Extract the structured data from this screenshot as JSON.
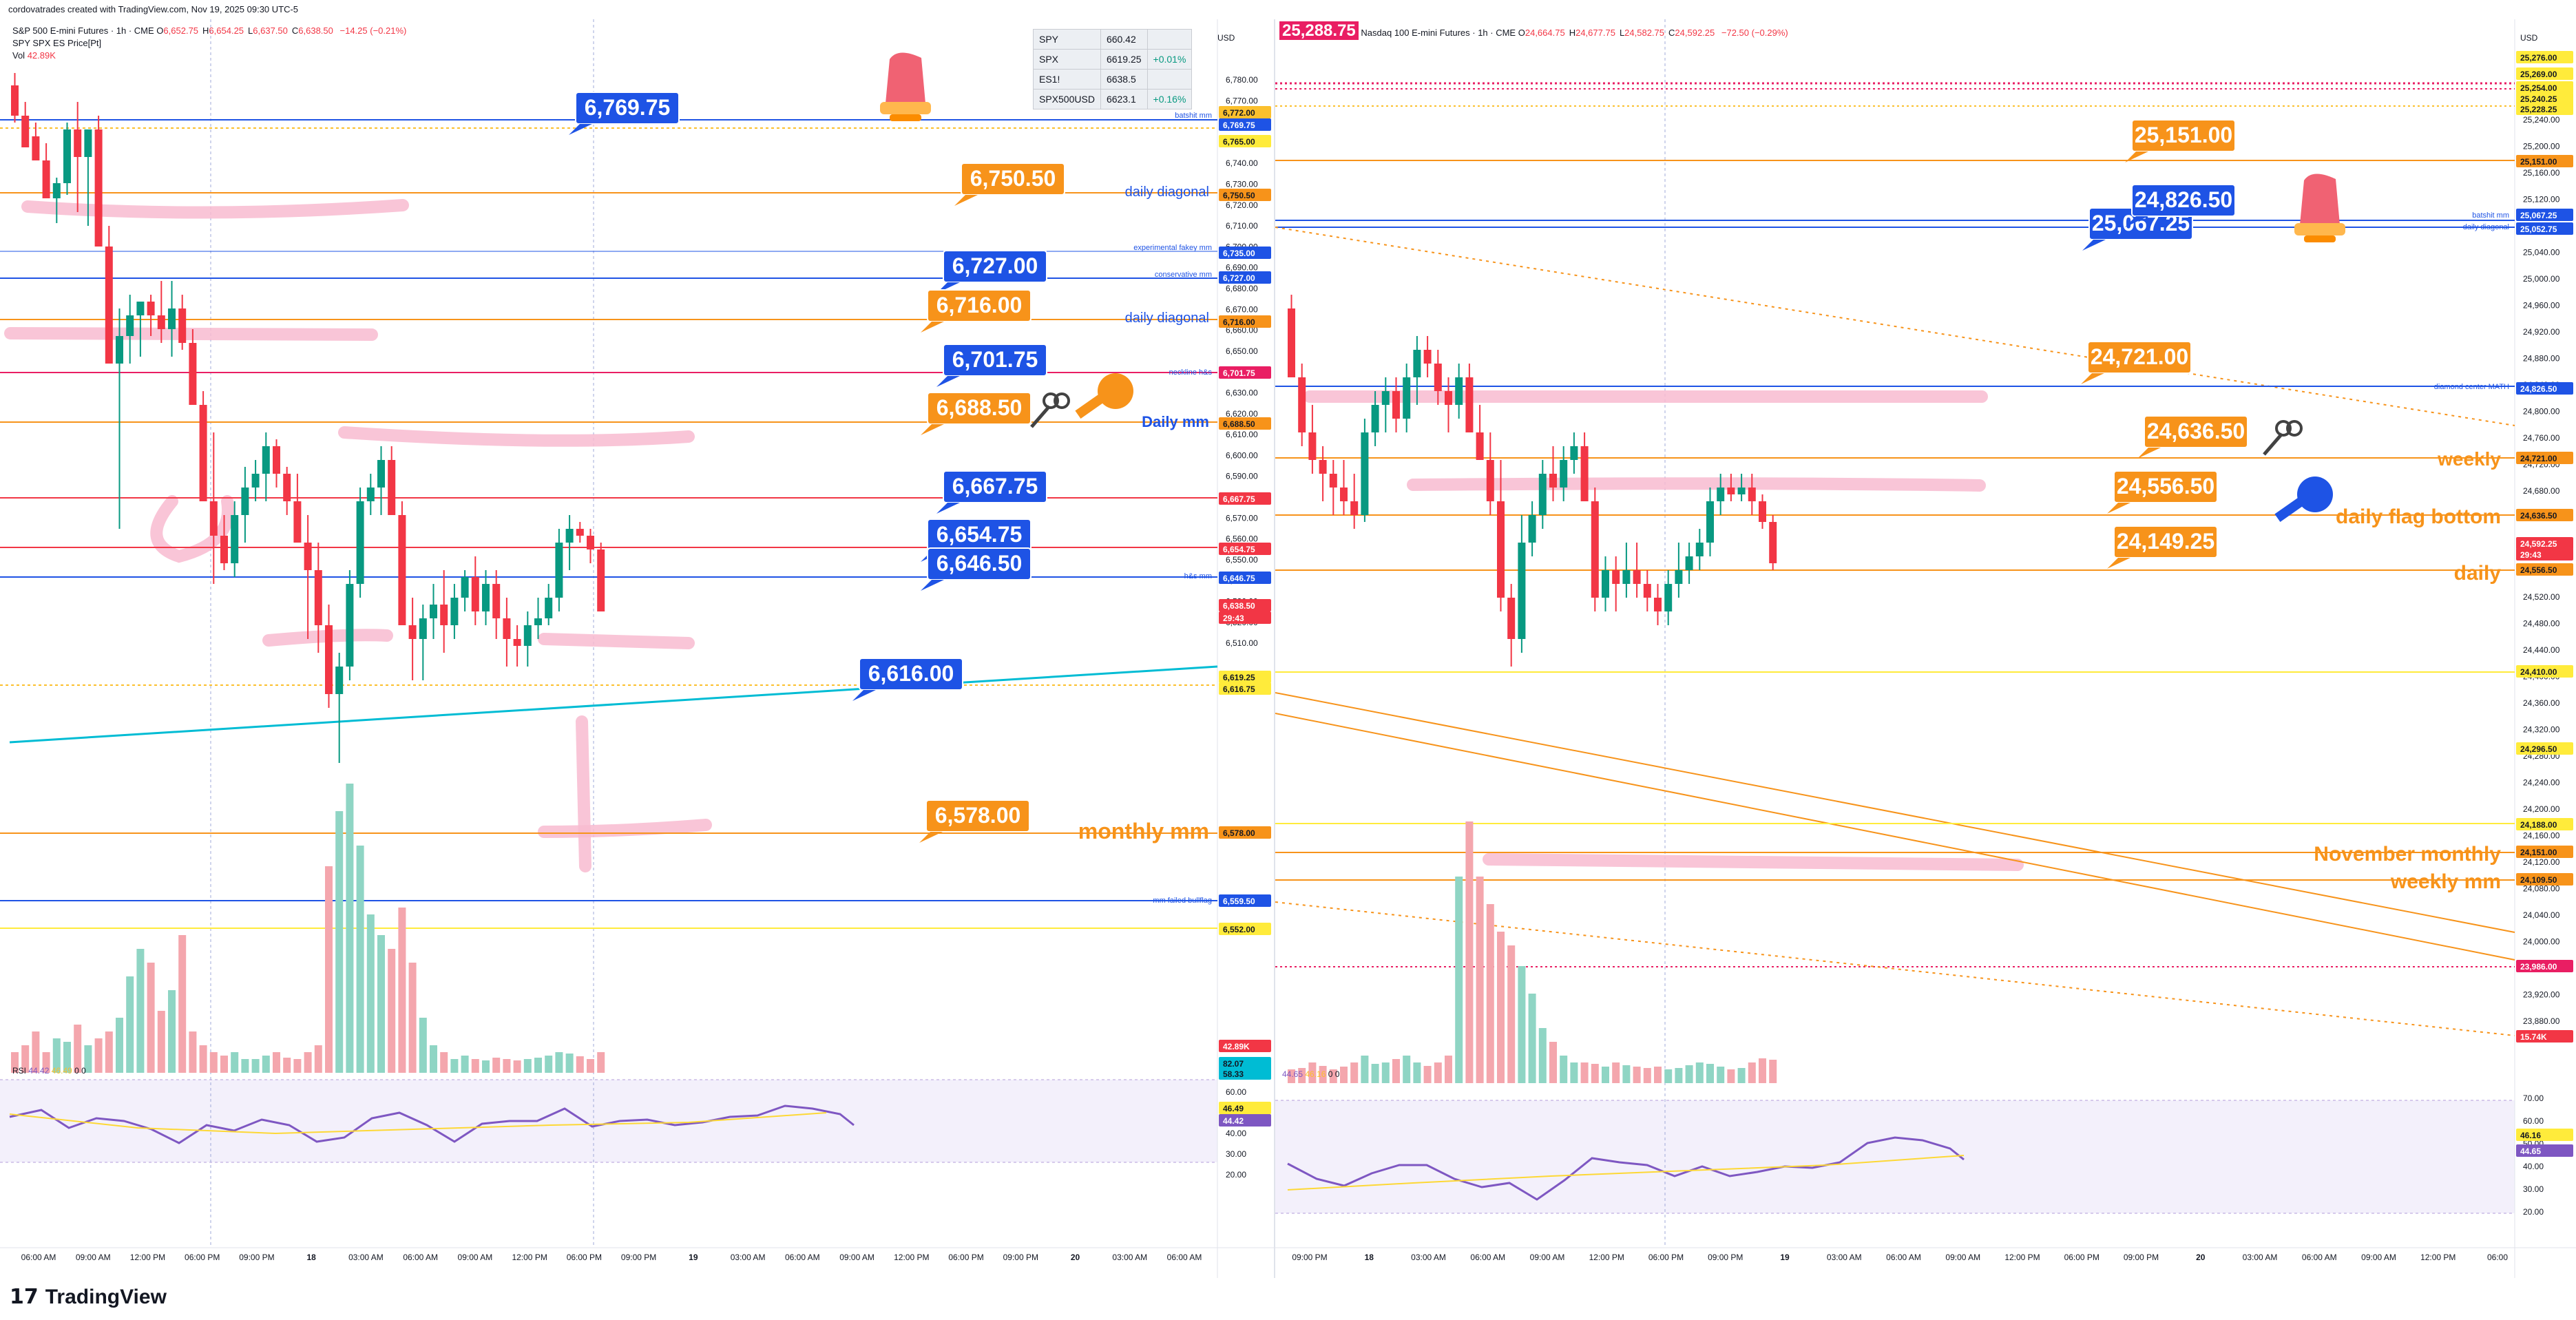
{
  "header": {
    "text": "cordovatrades created with TradingView.com, Nov 19, 2025 09:30 UTC-5"
  },
  "left": {
    "symbol": "S&P 500 E-mini Futures · 1h · CME",
    "ohlc": [
      {
        "k": "O",
        "v": "6,652.75"
      },
      {
        "k": "H",
        "v": "6,654.25"
      },
      {
        "k": "L",
        "v": "6,637.50"
      },
      {
        "k": "C",
        "v": "6,638.50"
      }
    ],
    "change": "−14.25 (−0.21%)",
    "indicator": "SPY SPX ES Price[Pt]",
    "vol_label": "Vol",
    "vol_value": "42.89K",
    "rsi_label": "RSI",
    "rsi_value": "44.42",
    "rsi_ma_value": "46.49",
    "rsi_extra": "0 0",
    "currency": "USD",
    "watchlist": [
      {
        "sym": "SPY",
        "price": "660.42",
        "chg": ""
      },
      {
        "sym": "SPX",
        "price": "6619.25",
        "chg": "+0.01%"
      },
      {
        "sym": "ES1!",
        "price": "6638.5",
        "chg": ""
      },
      {
        "sym": "SPX500USD",
        "price": "6623.1",
        "chg": "+0.16%"
      }
    ],
    "price_ticks": [
      "6,780.00",
      "6,770.00",
      "6,760.00",
      "6,750.00",
      "6,740.00",
      "6,730.00",
      "6,720.00",
      "6,710.00",
      "6,700.00",
      "6,690.00",
      "6,680.00",
      "6,670.00",
      "6,660.00",
      "6,650.00",
      "6,640.00",
      "6,630.00",
      "6,620.00",
      "6,610.00",
      "6,600.00",
      "6,590.00",
      "6,580.00",
      "6,570.00",
      "6,560.00",
      "6,550.00",
      "6,540.00",
      "6,530.00",
      "6,520.00",
      "6,510.00"
    ],
    "rsi_ticks": [
      "70.00",
      "60.00",
      "50.00",
      "40.00",
      "30.00",
      "20.00"
    ],
    "time_ticks": [
      "06:00 AM",
      "09:00 AM",
      "12:00 PM",
      "06:00 PM",
      "09:00 PM",
      "18",
      "03:00 AM",
      "06:00 AM",
      "09:00 AM",
      "12:00 PM",
      "06:00 PM",
      "09:00 PM",
      "19",
      "03:00 AM",
      "06:00 AM",
      "09:00 AM",
      "12:00 PM",
      "06:00 PM",
      "09:00 PM",
      "20",
      "03:00 AM",
      "06:00 AM"
    ],
    "axis_badges": [
      {
        "text": "6,772.00",
        "color": "#fbc02d",
        "fg": "#131722"
      },
      {
        "text": "6,769.75",
        "color": "#1e53e5",
        "fg": "#ffffff"
      },
      {
        "text": "6,765.00",
        "color": "#ffeb3b",
        "fg": "#131722"
      },
      {
        "text": "6,750.50",
        "color": "#f7931a",
        "fg": "#131722"
      },
      {
        "text": "6,735.00",
        "color": "#1e53e5",
        "fg": "#ffffff"
      },
      {
        "text": "6,727.00",
        "color": "#1e53e5",
        "fg": "#ffffff"
      },
      {
        "text": "6,716.00",
        "color": "#f7931a",
        "fg": "#131722"
      },
      {
        "text": "6,701.75",
        "color": "#e91e63",
        "fg": "#ffffff"
      },
      {
        "text": "6,688.50",
        "color": "#f7931a",
        "fg": "#131722"
      },
      {
        "text": "6,667.75",
        "color": "#f23645",
        "fg": "#ffffff"
      },
      {
        "text": "6,654.75",
        "color": "#f23645",
        "fg": "#ffffff"
      },
      {
        "text": "6,646.75",
        "color": "#1e53e5",
        "fg": "#ffffff"
      },
      {
        "text": "6,638.50",
        "color": "#f23645",
        "fg": "#ffffff"
      },
      {
        "text": "29:43",
        "color": "#f23645",
        "fg": "#ffffff"
      },
      {
        "text": "6,619.25",
        "color": "#ffeb3b",
        "fg": "#131722"
      },
      {
        "text": "6,616.75",
        "color": "#ffeb3b",
        "fg": "#131722"
      },
      {
        "text": "6,578.00",
        "color": "#f7931a",
        "fg": "#131722"
      },
      {
        "text": "6,559.50",
        "color": "#1e53e5",
        "fg": "#ffffff"
      },
      {
        "text": "6,552.00",
        "color": "#ffeb3b",
        "fg": "#131722"
      },
      {
        "text": "42.89K",
        "color": "#f23645",
        "fg": "#ffffff"
      },
      {
        "text": "82.07",
        "color": "#00bcd4",
        "fg": "#131722"
      },
      {
        "text": "58.33",
        "color": "#00bcd4",
        "fg": "#131722"
      },
      {
        "text": "46.49",
        "color": "#ffeb3b",
        "fg": "#131722"
      },
      {
        "text": "44.42",
        "color": "#7e57c2",
        "fg": "#ffffff"
      }
    ],
    "price_callouts": [
      {
        "text": "6,769.75",
        "color": "#1e53e5"
      },
      {
        "text": "6,750.50",
        "color": "#f7931a"
      },
      {
        "text": "6,727.00",
        "color": "#1e53e5"
      },
      {
        "text": "6,716.00",
        "color": "#f7931a"
      },
      {
        "text": "6,701.75",
        "color": "#1e53e5"
      },
      {
        "text": "6,688.50",
        "color": "#f7931a"
      },
      {
        "text": "6,667.75",
        "color": "#1e53e5"
      },
      {
        "text": "6,654.75",
        "color": "#1e53e5"
      },
      {
        "text": "6,646.50",
        "color": "#1e53e5"
      },
      {
        "text": "6,616.00",
        "color": "#1e53e5"
      },
      {
        "text": "6,578.00",
        "color": "#f7931a"
      }
    ],
    "line_labels": [
      {
        "text": "batshit mm",
        "color": "#1e53e5"
      },
      {
        "text": "daily diagonal",
        "color": "#1e53e5"
      },
      {
        "text": "experimental fakey mm",
        "color": "#1e53e5"
      },
      {
        "text": "conservative mm",
        "color": "#1e53e5"
      },
      {
        "text": "daily diagonal",
        "color": "#1e53e5"
      },
      {
        "text": "neckline h&s",
        "color": "#1e53e5"
      },
      {
        "text": "Daily mm",
        "color": "#1e53e5"
      },
      {
        "text": "h&s mm",
        "color": "#1e53e5"
      },
      {
        "text": "monthly mm",
        "color": "#f7931a"
      },
      {
        "text": "mm failed bullflag",
        "color": "#1e53e5"
      }
    ]
  },
  "right": {
    "symbol": "Nasdaq 100 E-mini Futures · 1h · CME",
    "symbol_badge": "25,288.75",
    "ohlc": [
      {
        "k": "O",
        "v": "24,664.75"
      },
      {
        "k": "H",
        "v": "24,677.75"
      },
      {
        "k": "L",
        "v": "24,582.75"
      },
      {
        "k": "C",
        "v": "24,592.25"
      }
    ],
    "change": "−72.50 (−0.29%)",
    "rsi_value": "44.65",
    "rsi_ma_value": "46.16",
    "rsi_extra": "0 0",
    "currency": "USD",
    "price_ticks": [
      "25,240.00",
      "25,200.00",
      "25,160.00",
      "25,120.00",
      "25,080.00",
      "25,040.00",
      "25,000.00",
      "24,960.00",
      "24,920.00",
      "24,880.00",
      "24,840.00",
      "24,800.00",
      "24,760.00",
      "24,720.00",
      "24,680.00",
      "24,640.00",
      "24,600.00",
      "24,560.00",
      "24,520.00",
      "24,480.00",
      "24,440.00",
      "24,400.00",
      "24,360.00",
      "24,320.00",
      "24,280.00",
      "24,240.00",
      "24,200.00",
      "24,160.00",
      "24,120.00",
      "24,080.00",
      "24,040.00",
      "24,000.00",
      "23,960.00",
      "23,920.00",
      "23,880.00"
    ],
    "rsi_ticks": [
      "70.00",
      "60.00",
      "50.00",
      "40.00",
      "30.00",
      "20.00"
    ],
    "time_ticks": [
      "09:00 PM",
      "18",
      "03:00 AM",
      "06:00 AM",
      "09:00 AM",
      "12:00 PM",
      "06:00 PM",
      "09:00 PM",
      "19",
      "03:00 AM",
      "06:00 AM",
      "09:00 AM",
      "12:00 PM",
      "06:00 PM",
      "09:00 PM",
      "20",
      "03:00 AM",
      "06:00 AM",
      "09:00 AM",
      "12:00 PM",
      "06:00"
    ],
    "axis_badges": [
      {
        "text": "25,276.00",
        "color": "#ffeb3b",
        "fg": "#131722"
      },
      {
        "text": "25,269.00",
        "color": "#ffeb3b",
        "fg": "#131722"
      },
      {
        "text": "25,254.00",
        "color": "#ffeb3b",
        "fg": "#131722"
      },
      {
        "text": "25,240.25",
        "color": "#ffeb3b",
        "fg": "#131722"
      },
      {
        "text": "25,228.25",
        "color": "#ffeb3b",
        "fg": "#131722"
      },
      {
        "text": "25,151.00",
        "color": "#f7931a",
        "fg": "#131722"
      },
      {
        "text": "25,067.25",
        "color": "#1e53e5",
        "fg": "#ffffff"
      },
      {
        "text": "25,052.75",
        "color": "#1e53e5",
        "fg": "#ffffff"
      },
      {
        "text": "24,826.50",
        "color": "#1e53e5",
        "fg": "#ffffff"
      },
      {
        "text": "24,721.00",
        "color": "#f7931a",
        "fg": "#131722"
      },
      {
        "text": "24,636.50",
        "color": "#f7931a",
        "fg": "#131722"
      },
      {
        "text": "24,592.25",
        "color": "#f23645",
        "fg": "#ffffff"
      },
      {
        "text": "29:43",
        "color": "#f23645",
        "fg": "#ffffff"
      },
      {
        "text": "24,556.50",
        "color": "#f7931a",
        "fg": "#131722"
      },
      {
        "text": "24,410.00",
        "color": "#ffeb3b",
        "fg": "#131722"
      },
      {
        "text": "24,296.50",
        "color": "#ffeb3b",
        "fg": "#131722"
      },
      {
        "text": "24,188.00",
        "color": "#ffeb3b",
        "fg": "#131722"
      },
      {
        "text": "24,151.00",
        "color": "#f7931a",
        "fg": "#131722"
      },
      {
        "text": "24,109.50",
        "color": "#f7931a",
        "fg": "#131722"
      },
      {
        "text": "23,986.00",
        "color": "#e91e63",
        "fg": "#ffffff"
      },
      {
        "text": "15.74K",
        "color": "#f23645",
        "fg": "#ffffff"
      },
      {
        "text": "46.16",
        "color": "#ffeb3b",
        "fg": "#131722"
      },
      {
        "text": "44.65",
        "color": "#7e57c2",
        "fg": "#ffffff"
      }
    ],
    "price_callouts": [
      {
        "text": "25,151.00",
        "color": "#f7931a"
      },
      {
        "text": "25,067.25",
        "color": "#1e53e5"
      },
      {
        "text": "24,826.50",
        "color": "#1e53e5"
      },
      {
        "text": "24,721.00",
        "color": "#f7931a"
      },
      {
        "text": "24,636.50",
        "color": "#f7931a"
      },
      {
        "text": "24,556.50",
        "color": "#f7931a"
      },
      {
        "text": "24,149.25",
        "color": "#f7931a"
      }
    ],
    "line_labels": [
      {
        "text": "batshit mm",
        "color": "#1e53e5"
      },
      {
        "text": "daily diagonal",
        "color": "#1e53e5"
      },
      {
        "text": "diamond center MATH",
        "color": "#1e53e5"
      },
      {
        "text": "weekly",
        "color": "#f7931a"
      },
      {
        "text": "daily flag bottom",
        "color": "#f7931a"
      },
      {
        "text": "daily",
        "color": "#f7931a"
      },
      {
        "text": "November monthly",
        "color": "#f7931a"
      },
      {
        "text": "weekly mm",
        "color": "#f7931a"
      }
    ]
  },
  "footer": {
    "brand": "TradingView"
  },
  "icons": [
    "alarm-bell-icon",
    "key-icon",
    "key-outline-icon",
    "alert-clock-icon"
  ],
  "colors": {
    "up": "#089981",
    "down": "#f23645",
    "orange": "#f7931a",
    "blue": "#1e53e5",
    "yellow": "#ffeb3b",
    "magenta": "#e91e63",
    "highlight": "#f8bbd0"
  }
}
